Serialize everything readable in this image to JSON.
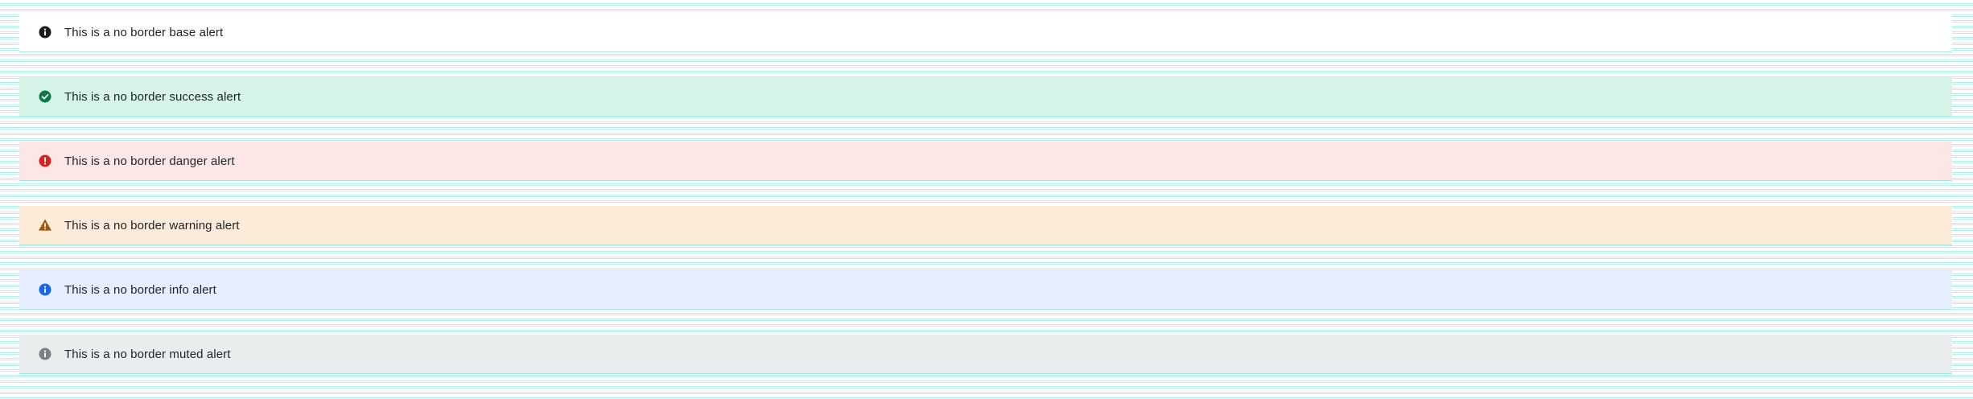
{
  "alerts": [
    {
      "variant": "base",
      "icon": "info-icon",
      "icon_color": "#1b1d20",
      "text": "This is a no border base alert"
    },
    {
      "variant": "success",
      "icon": "check-icon",
      "icon_color": "#0a7a47",
      "text": "This is a no border success alert"
    },
    {
      "variant": "danger",
      "icon": "error-icon",
      "icon_color": "#d92020",
      "text": "This is a no border danger alert"
    },
    {
      "variant": "warning",
      "icon": "warning-icon",
      "icon_color": "#a65410",
      "text": "This is a no border warning alert"
    },
    {
      "variant": "info",
      "icon": "info-icon",
      "icon_color": "#1466f0",
      "text": "This is a no border info alert"
    },
    {
      "variant": "muted",
      "icon": "info-icon",
      "icon_color": "#7d8083",
      "text": "This is a no border muted alert"
    }
  ],
  "colors": {
    "background_lines": "#b9f2ec",
    "text": "#1f2328"
  }
}
